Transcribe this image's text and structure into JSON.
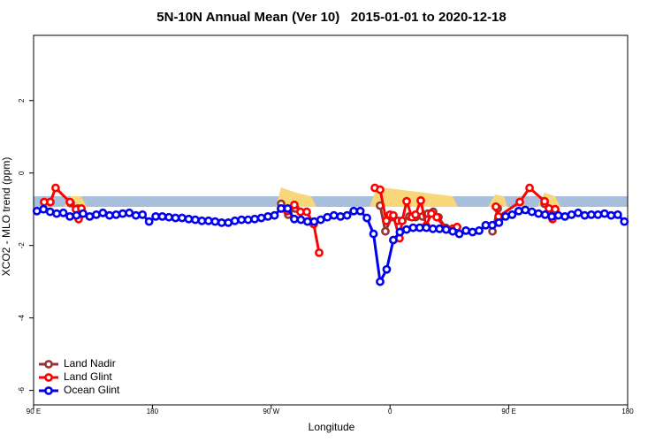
{
  "chart_data": {
    "type": "line",
    "title": "5N-10N Annual Mean (Ver 10)   2015-01-01 to 2020-12-18",
    "xlabel": "Longitude",
    "ylabel": "XCO2 - MLO trend (ppm)",
    "xlim": [
      90,
      540
    ],
    "ylim": [
      -6.4,
      3.8
    ],
    "xticks": [
      {
        "value": 90,
        "label": "90 E"
      },
      {
        "value": 180,
        "label": "180"
      },
      {
        "value": 270,
        "label": "90 W"
      },
      {
        "value": 360,
        "label": "0"
      },
      {
        "value": 450,
        "label": "90 E"
      },
      {
        "value": 540,
        "label": "180"
      }
    ],
    "yticks": [
      -6,
      -4,
      -2,
      0,
      2
    ],
    "legend": "bottom-left",
    "series": [
      {
        "name": "Land Nadir",
        "color": "#993333",
        "x": [
          118.1,
          123.5,
          126.2,
          null,
          277.5,
          282.9,
          288.2,
          null,
          352.5,
          356.5,
          361.2,
          365.9,
          369.2,
          374.6,
          379.3,
          384.6,
          388.7,
          392.7,
          396.7,
          402.1,
          407.4,
          null,
          437.6,
          441.6,
          null,
          477.1,
          481.1,
          485.1
        ],
        "values": [
          -0.83,
          -0.98,
          -1.02,
          null,
          -0.85,
          -1.15,
          -0.98,
          null,
          -0.9,
          -1.61,
          -1.22,
          -1.32,
          -1.32,
          -1.2,
          -1.22,
          -1.2,
          -1.12,
          -1.07,
          -1.22,
          -1.51,
          -1.56,
          null,
          -1.61,
          -0.98,
          null,
          -0.85,
          -1.0,
          -1.02
        ]
      },
      {
        "name": "Land Glint",
        "color": "#ff0000",
        "x": [
          98.0,
          102.7,
          106.7,
          117.5,
          122.1,
          124.1,
          126.2,
          null,
          277.5,
          282.2,
          287.5,
          292.2,
          296.9,
          302.2,
          306.3,
          null,
          348.5,
          352.5,
          357.2,
          359.9,
          362.5,
          367.2,
          369.2,
          372.6,
          376.6,
          379.3,
          383.3,
          387.3,
          391.3,
          395.4,
          402.7,
          407.4,
          410.8,
          null,
          440.2,
          442.2,
          458.3,
          465.7,
          477.1,
          480.4,
          483.1,
          485.1
        ],
        "values": [
          -0.8,
          -0.8,
          -0.41,
          -0.8,
          -1.0,
          -1.27,
          -0.98,
          null,
          -0.98,
          -1.05,
          -0.88,
          -1.07,
          -1.07,
          -1.41,
          -2.2,
          null,
          -0.41,
          -0.46,
          -1.32,
          -1.15,
          -1.17,
          -1.8,
          -1.32,
          -0.78,
          -1.22,
          -1.15,
          -0.76,
          -1.46,
          -1.12,
          -1.22,
          -1.56,
          -1.54,
          -1.49,
          null,
          -0.93,
          -1.2,
          -0.8,
          -0.41,
          -0.78,
          -0.98,
          -1.27,
          -1.0
        ]
      },
      {
        "name": "Ocean Glint",
        "color": "#0000ee",
        "x": [
          92.5,
          97.5,
          102.5,
          107.5,
          112.5,
          117.5,
          122.5,
          127.5,
          132.5,
          137.5,
          142.5,
          147.5,
          152.5,
          157.5,
          162.5,
          167.5,
          172.5,
          177.5,
          182.5,
          187.5,
          192.5,
          197.5,
          202.5,
          207.5,
          212.5,
          217.5,
          222.5,
          227.5,
          232.5,
          237.5,
          242.5,
          247.5,
          252.5,
          257.5,
          262.5,
          267.5,
          272.5,
          277.5,
          282.5,
          287.5,
          292.5,
          297.5,
          302.5,
          307.5,
          312.5,
          317.5,
          322.5,
          327.5,
          332.5,
          337.5,
          342.5,
          347.5,
          352.5,
          357.5,
          362.5,
          367.5,
          372.5,
          377.5,
          382.5,
          387.5,
          392.5,
          397.5,
          402.5,
          407.5,
          412.5,
          417.5,
          422.5,
          427.5,
          432.5,
          437.5,
          442.5,
          447.5,
          452.5,
          457.5,
          462.5,
          467.5,
          472.5,
          477.5,
          482.5,
          487.5,
          492.5,
          497.5,
          502.5,
          507.5,
          512.5,
          517.5,
          522.5,
          527.5,
          532.5,
          537.5
        ],
        "values": [
          -1.05,
          -1.0,
          -1.07,
          -1.12,
          -1.1,
          -1.2,
          -1.17,
          -1.12,
          -1.2,
          -1.15,
          -1.1,
          -1.17,
          -1.15,
          -1.12,
          -1.1,
          -1.17,
          -1.15,
          -1.34,
          -1.2,
          -1.2,
          -1.22,
          -1.24,
          -1.24,
          -1.27,
          -1.29,
          -1.32,
          -1.32,
          -1.34,
          -1.37,
          -1.37,
          -1.32,
          -1.29,
          -1.29,
          -1.27,
          -1.24,
          -1.2,
          -1.17,
          -0.98,
          -0.98,
          -1.27,
          -1.29,
          -1.34,
          -1.34,
          -1.29,
          -1.22,
          -1.17,
          -1.2,
          -1.17,
          -1.05,
          -1.05,
          -1.24,
          -1.68,
          -3.0,
          -2.66,
          -1.85,
          -1.63,
          -1.56,
          -1.51,
          -1.51,
          -1.51,
          -1.54,
          -1.54,
          -1.56,
          -1.61,
          -1.68,
          -1.59,
          -1.63,
          -1.59,
          -1.44,
          -1.44,
          -1.37,
          -1.2,
          -1.15,
          -1.05,
          -1.02,
          -1.07,
          -1.12,
          -1.15,
          -1.2,
          -1.17,
          -1.2,
          -1.15,
          -1.1,
          -1.17,
          -1.15,
          -1.15,
          -1.12,
          -1.17,
          -1.15,
          -1.34
        ]
      }
    ]
  }
}
